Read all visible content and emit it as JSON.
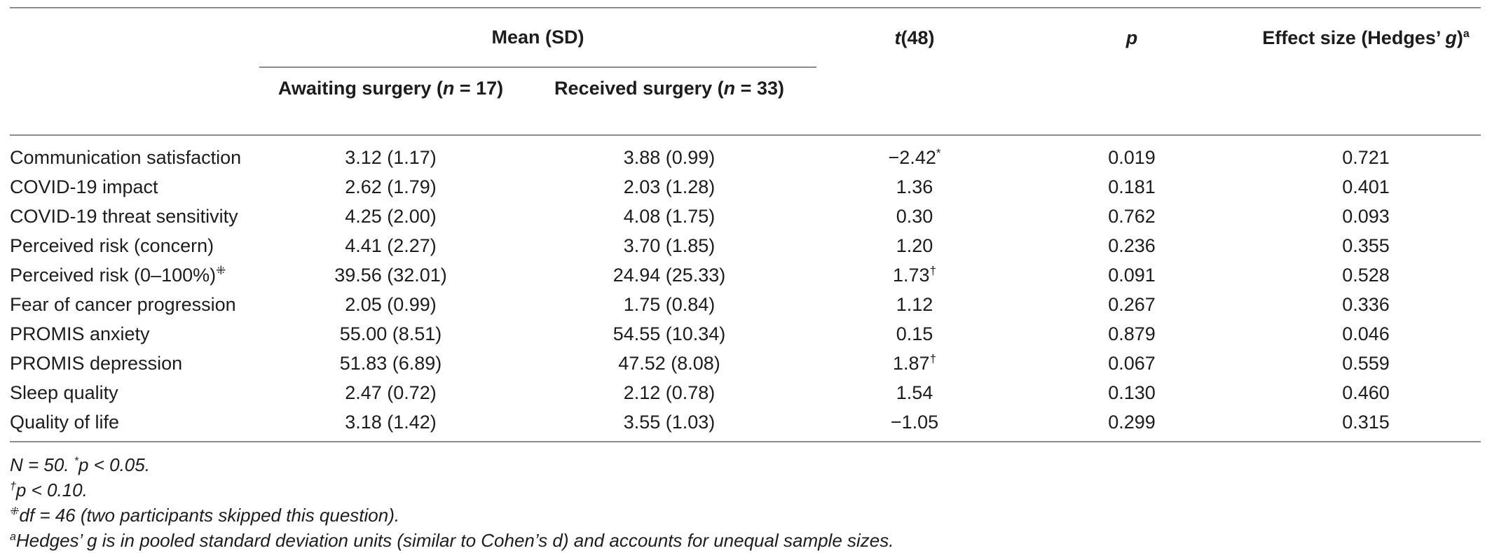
{
  "colors": {
    "background": "#ffffff",
    "text": "#1d1d1f",
    "rule": "#8b8c8e"
  },
  "table": {
    "header": {
      "mean_sd": "Mean (SD)",
      "t": {
        "italic": "t",
        "rest": "(48)"
      },
      "p": "p",
      "effect": {
        "pre": "Effect size (Hedges’ ",
        "g": "g",
        "post": ")",
        "sup": "a"
      },
      "awaiting": {
        "pre": "Awaiting surgery (",
        "n": "n",
        "post": " = 17)"
      },
      "received": {
        "pre": "Received surgery (",
        "n": "n",
        "post": " = 33)"
      }
    },
    "rows": [
      {
        "label": "Communication satisfaction",
        "label_sup": "",
        "awaiting": "3.12 (1.17)",
        "received": "3.88 (0.99)",
        "t": "−2.42",
        "t_sup": "*",
        "p": "0.019",
        "g": "0.721"
      },
      {
        "label": "COVID-19 impact",
        "label_sup": "",
        "awaiting": "2.62 (1.79)",
        "received": "2.03 (1.28)",
        "t": "1.36",
        "t_sup": "",
        "p": "0.181",
        "g": "0.401"
      },
      {
        "label": "COVID-19 threat sensitivity",
        "label_sup": "",
        "awaiting": "4.25 (2.00)",
        "received": "4.08 (1.75)",
        "t": "0.30",
        "t_sup": "",
        "p": "0.762",
        "g": "0.093"
      },
      {
        "label": "Perceived risk (concern)",
        "label_sup": "",
        "awaiting": "4.41 (2.27)",
        "received": "3.70 (1.85)",
        "t": "1.20",
        "t_sup": "",
        "p": "0.236",
        "g": "0.355"
      },
      {
        "label": "Perceived risk (0–100%)",
        "label_sup": "⁜",
        "awaiting": "39.56 (32.01)",
        "received": "24.94 (25.33)",
        "t": "1.73",
        "t_sup": "†",
        "p": "0.091",
        "g": "0.528"
      },
      {
        "label": "Fear of cancer progression",
        "label_sup": "",
        "awaiting": "2.05 (0.99)",
        "received": "1.75 (0.84)",
        "t": "1.12",
        "t_sup": "",
        "p": "0.267",
        "g": "0.336"
      },
      {
        "label": "PROMIS anxiety",
        "label_sup": "",
        "awaiting": "55.00 (8.51)",
        "received": "54.55 (10.34)",
        "t": "0.15",
        "t_sup": "",
        "p": "0.879",
        "g": "0.046"
      },
      {
        "label": "PROMIS depression",
        "label_sup": "",
        "awaiting": "51.83 (6.89)",
        "received": "47.52 (8.08)",
        "t": "1.87",
        "t_sup": "†",
        "p": "0.067",
        "g": "0.559"
      },
      {
        "label": "Sleep quality",
        "label_sup": "",
        "awaiting": "2.47 (0.72)",
        "received": "2.12 (0.78)",
        "t": "1.54",
        "t_sup": "",
        "p": "0.130",
        "g": "0.460"
      },
      {
        "label": "Quality of life",
        "label_sup": "",
        "awaiting": "3.18 (1.42)",
        "received": "3.55 (1.03)",
        "t": "−1.05",
        "t_sup": "",
        "p": "0.299",
        "g": "0.315"
      }
    ],
    "footnotes": [
      {
        "pre": "N = 50. ",
        "sup": "*",
        "post": "p < 0.05."
      },
      {
        "pre": "",
        "sup": "†",
        "post": "p < 0.10."
      },
      {
        "pre": "",
        "sup": "⁜",
        "post": "df = 46 (two participants skipped this question)."
      },
      {
        "pre": "",
        "sup": "a",
        "post": "Hedges’ g is in pooled standard deviation units (similar to Cohen’s d) and accounts for unequal sample sizes."
      }
    ]
  }
}
